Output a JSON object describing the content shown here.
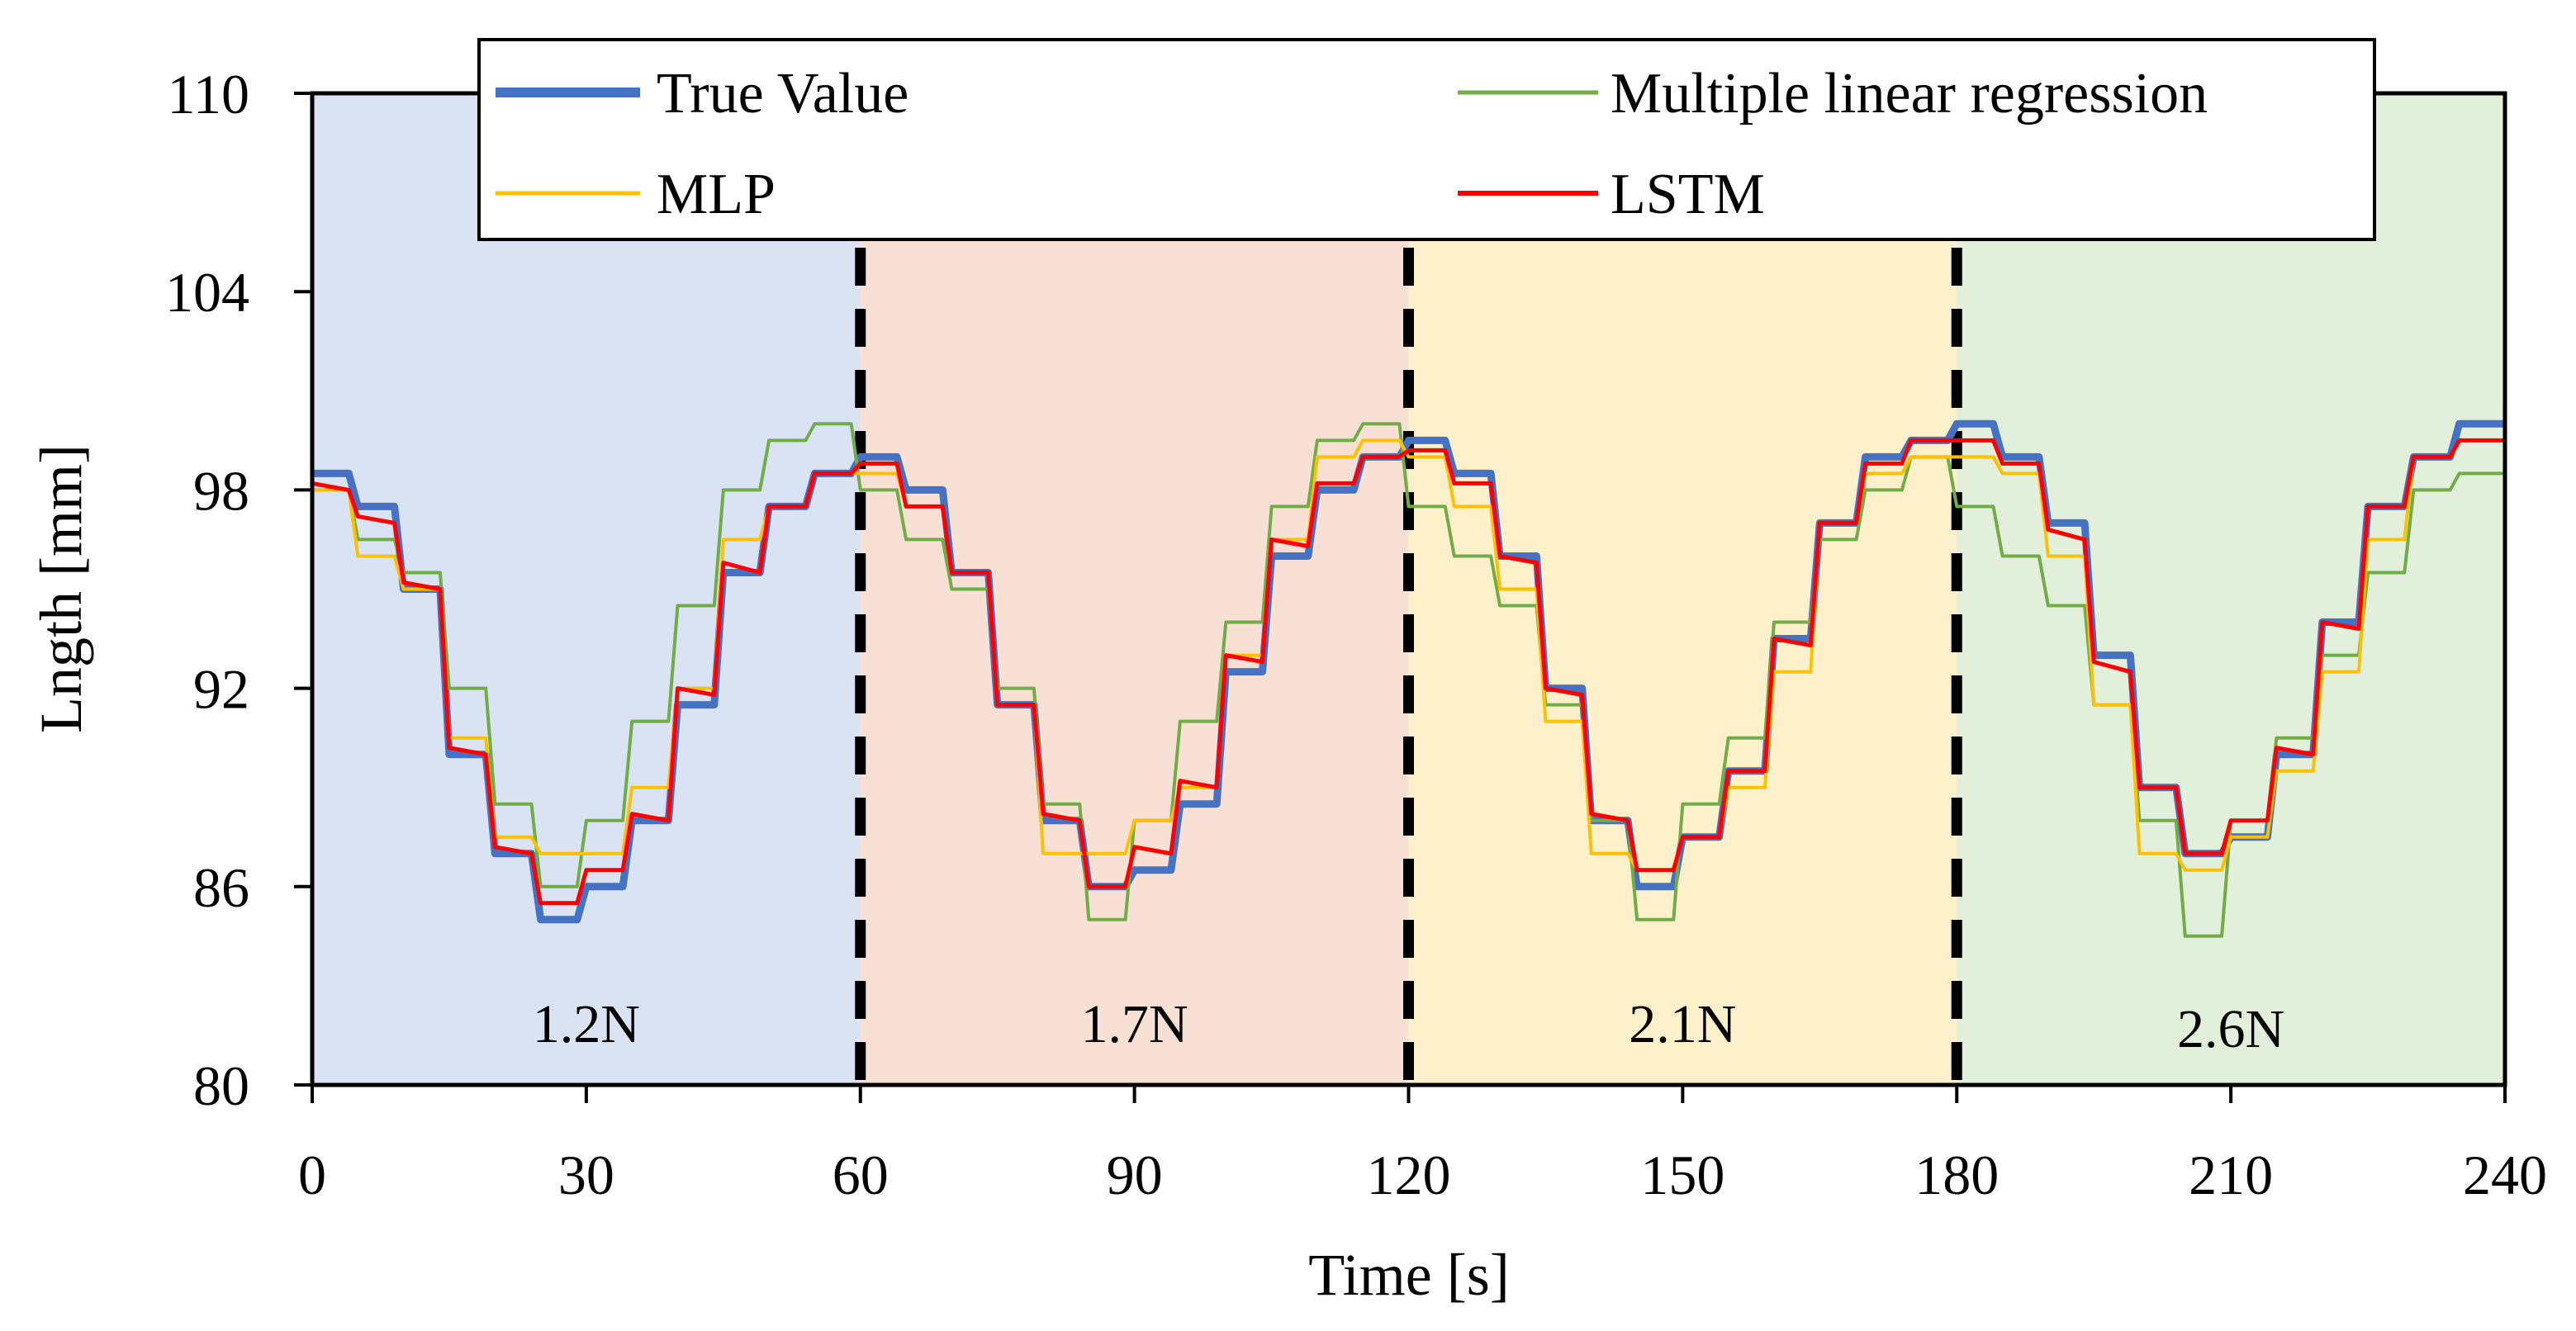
{
  "chart_data": {
    "type": "line",
    "title": "",
    "xlabel": "Time [s]",
    "ylabel": "Lngth [mm]",
    "xlim": [
      0,
      240
    ],
    "ylim": [
      80,
      110
    ],
    "xticks": [
      0,
      30,
      60,
      90,
      120,
      150,
      180,
      210,
      240
    ],
    "yticks": [
      80,
      86,
      92,
      98,
      104,
      110
    ],
    "xtick_labels": [
      "0",
      "30",
      "60",
      "90",
      "120",
      "150",
      "180",
      "210",
      "240"
    ],
    "ytick_labels": [
      "80",
      "86",
      "92",
      "98",
      "104",
      "110"
    ],
    "grid": false,
    "legend_position": "top",
    "regions": [
      {
        "label": "1.2N",
        "x_start": 0,
        "x_end": 60,
        "color": "#dae3f3"
      },
      {
        "label": "1.7N",
        "x_start": 60,
        "x_end": 120,
        "color": "#f8e0d5"
      },
      {
        "label": "2.1N",
        "x_start": 120,
        "x_end": 180,
        "color": "#fff0cc"
      },
      {
        "label": "2.6N",
        "x_start": 180,
        "x_end": 240,
        "color": "#e2efda"
      }
    ],
    "dividers": [
      60,
      120,
      180
    ],
    "series": [
      {
        "name": "True Value",
        "color": "#4472c4",
        "width": 9,
        "x": [
          0,
          4,
          5,
          9,
          10,
          14,
          15,
          19,
          20,
          24,
          25,
          29,
          30,
          34,
          35,
          39,
          40,
          44,
          45,
          49,
          50,
          54,
          55,
          59,
          60,
          64,
          65,
          69,
          70,
          74,
          75,
          79,
          80,
          84,
          85,
          89,
          90,
          94,
          95,
          99,
          100,
          104,
          105,
          109,
          110,
          114,
          115,
          119,
          120,
          124,
          125,
          129,
          130,
          134,
          135,
          139,
          140,
          144,
          145,
          149,
          150,
          154,
          155,
          159,
          160,
          164,
          165,
          169,
          170,
          174,
          175,
          179,
          180,
          184,
          185,
          189,
          190,
          194,
          195,
          199,
          200,
          204,
          205,
          209,
          210,
          214,
          215,
          219,
          220,
          224,
          225,
          229,
          230,
          234,
          235,
          240
        ],
        "y": [
          98.5,
          98.5,
          97.5,
          97.5,
          95,
          95,
          90,
          90,
          87,
          87,
          85,
          85,
          86,
          86,
          88,
          88,
          91.5,
          91.5,
          95.5,
          95.5,
          97.5,
          97.5,
          98.5,
          98.5,
          99,
          99,
          98,
          98,
          95.5,
          95.5,
          91.5,
          91.5,
          88,
          88,
          86,
          86,
          86.5,
          86.5,
          88.5,
          88.5,
          92.5,
          92.5,
          96,
          96,
          98,
          98,
          99,
          99,
          99.5,
          99.5,
          98.5,
          98.5,
          96,
          96,
          92,
          92,
          88,
          88,
          86,
          86,
          87.5,
          87.5,
          89.5,
          89.5,
          93.5,
          93.5,
          97,
          97,
          99,
          99,
          99.5,
          99.5,
          100,
          100,
          99,
          99,
          97,
          97,
          93,
          93,
          89,
          89,
          87,
          87,
          87.5,
          87.5,
          90,
          90,
          94,
          94,
          97.5,
          97.5,
          99,
          99,
          100,
          100
        ]
      },
      {
        "name": "Multiple linear regression",
        "color": "#70ad47",
        "width": 4,
        "x": [
          0,
          4,
          5,
          9,
          10,
          14,
          15,
          19,
          20,
          24,
          25,
          29,
          30,
          34,
          35,
          39,
          40,
          44,
          45,
          49,
          50,
          54,
          55,
          59,
          60,
          64,
          65,
          69,
          70,
          74,
          75,
          79,
          80,
          84,
          85,
          89,
          90,
          94,
          95,
          99,
          100,
          104,
          105,
          109,
          110,
          114,
          115,
          119,
          120,
          124,
          125,
          129,
          130,
          134,
          135,
          139,
          140,
          144,
          145,
          149,
          150,
          154,
          155,
          159,
          160,
          164,
          165,
          169,
          170,
          174,
          175,
          179,
          180,
          184,
          185,
          189,
          190,
          194,
          195,
          199,
          200,
          204,
          205,
          209,
          210,
          214,
          215,
          219,
          220,
          224,
          225,
          229,
          230,
          234,
          235,
          240
        ],
        "y": [
          98,
          98,
          96.5,
          96.5,
          95.5,
          95.5,
          92,
          92,
          88.5,
          88.5,
          86,
          86,
          88,
          88,
          91,
          91,
          94.5,
          94.5,
          98,
          98,
          99.5,
          99.5,
          100,
          100,
          98,
          98,
          96.5,
          96.5,
          95,
          95,
          92,
          92,
          88.5,
          88.5,
          85,
          85,
          88,
          88,
          91,
          91,
          94,
          94,
          97.5,
          97.5,
          99.5,
          99.5,
          100,
          100,
          97.5,
          97.5,
          96,
          96,
          94.5,
          94.5,
          91.5,
          91.5,
          88,
          88,
          85,
          85,
          88.5,
          88.5,
          90.5,
          90.5,
          94,
          94,
          96.5,
          96.5,
          98,
          98,
          99,
          99,
          97.5,
          97.5,
          96,
          96,
          94.5,
          94.5,
          91.5,
          91.5,
          88,
          88,
          84.5,
          84.5,
          88,
          88,
          90.5,
          90.5,
          93,
          93,
          95.5,
          95.5,
          98,
          98,
          98.5,
          98.5
        ]
      },
      {
        "name": "MLP",
        "color": "#ffc000",
        "width": 4,
        "x": [
          0,
          4,
          5,
          9,
          10,
          14,
          15,
          19,
          20,
          24,
          25,
          29,
          30,
          34,
          35,
          39,
          40,
          44,
          45,
          49,
          50,
          54,
          55,
          59,
          60,
          64,
          65,
          69,
          70,
          74,
          75,
          79,
          80,
          84,
          85,
          89,
          90,
          94,
          95,
          99,
          100,
          104,
          105,
          109,
          110,
          114,
          115,
          119,
          120,
          124,
          125,
          129,
          130,
          134,
          135,
          139,
          140,
          144,
          145,
          149,
          150,
          154,
          155,
          159,
          160,
          164,
          165,
          169,
          170,
          174,
          175,
          179,
          180,
          184,
          185,
          189,
          190,
          194,
          195,
          199,
          200,
          204,
          205,
          209,
          210,
          214,
          215,
          219,
          220,
          224,
          225,
          229,
          230,
          234,
          235,
          240
        ],
        "y": [
          98,
          98,
          96,
          96,
          95,
          95,
          90.5,
          90.5,
          87.5,
          87.5,
          87,
          87,
          87,
          87,
          89,
          89,
          92,
          92,
          96.5,
          96.5,
          97.5,
          97.5,
          98.5,
          98.5,
          98.5,
          98.5,
          97.5,
          97.5,
          95.5,
          95.5,
          91.5,
          91.5,
          87,
          87,
          87,
          87,
          88,
          88,
          89,
          89,
          93,
          93,
          96.5,
          96.5,
          99,
          99,
          99.5,
          99.5,
          99,
          99,
          97.5,
          97.5,
          95,
          95,
          91,
          91,
          87,
          87,
          86.5,
          86.5,
          87.5,
          87.5,
          89,
          89,
          92.5,
          92.5,
          97,
          97,
          98.5,
          98.5,
          99,
          99,
          99,
          99,
          98.5,
          98.5,
          96,
          96,
          91.5,
          91.5,
          87,
          87,
          86.5,
          86.5,
          87.5,
          87.5,
          89.5,
          89.5,
          92.5,
          92.5,
          96.5,
          96.5,
          99,
          99,
          99.5,
          99.5
        ]
      },
      {
        "name": "LSTM",
        "color": "#ff0000",
        "width": 5,
        "x": [
          0,
          4,
          5,
          9,
          10,
          14,
          15,
          19,
          20,
          24,
          25,
          29,
          30,
          34,
          35,
          39,
          40,
          44,
          45,
          49,
          50,
          54,
          55,
          59,
          60,
          64,
          65,
          69,
          70,
          74,
          75,
          79,
          80,
          84,
          85,
          89,
          90,
          94,
          95,
          99,
          100,
          104,
          105,
          109,
          110,
          114,
          115,
          119,
          120,
          124,
          125,
          129,
          130,
          134,
          135,
          139,
          140,
          144,
          145,
          149,
          150,
          154,
          155,
          159,
          160,
          164,
          165,
          169,
          170,
          174,
          175,
          179,
          180,
          184,
          185,
          189,
          190,
          194,
          195,
          199,
          200,
          204,
          205,
          209,
          210,
          214,
          215,
          219,
          220,
          224,
          225,
          229,
          230,
          234,
          235,
          240
        ],
        "y": [
          98.2,
          98,
          97.2,
          97,
          95.2,
          95,
          90.2,
          90,
          87.2,
          87,
          85.5,
          85.5,
          86.5,
          86.5,
          88.2,
          88,
          92,
          91.8,
          95.8,
          95.5,
          97.5,
          97.5,
          98.5,
          98.5,
          98.8,
          98.8,
          97.5,
          97.5,
          95.5,
          95.5,
          91.5,
          91.5,
          88.2,
          88,
          86,
          86,
          87.2,
          87,
          89.2,
          89,
          93,
          92.8,
          96.5,
          96.3,
          98.2,
          98.2,
          99,
          99,
          99.2,
          99.2,
          98.2,
          98.2,
          96,
          95.8,
          92,
          91.8,
          88.2,
          88,
          86.5,
          86.5,
          87.5,
          87.5,
          89.5,
          89.5,
          93.5,
          93.3,
          97,
          97,
          98.8,
          98.8,
          99.5,
          99.5,
          99.5,
          99.5,
          98.8,
          98.8,
          96.8,
          96.5,
          92.8,
          92.5,
          89,
          89,
          87,
          87,
          88,
          88,
          90.2,
          90,
          94,
          93.8,
          97.5,
          97.5,
          99,
          99,
          99.5,
          99.5
        ]
      }
    ]
  }
}
